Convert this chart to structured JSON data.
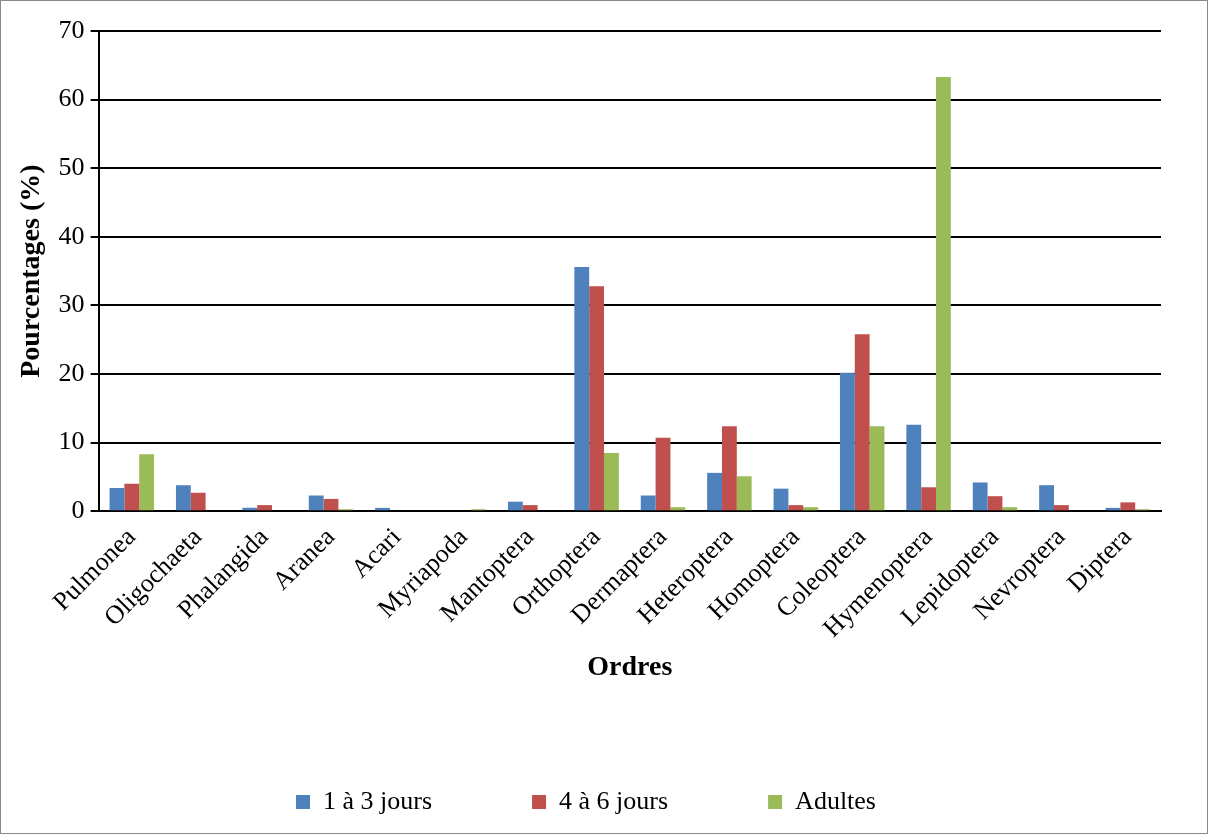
{
  "chart_data": {
    "type": "bar",
    "xlabel": "Ordres",
    "ylabel": "Pourcentages (%)",
    "categories": [
      "Pulmonea",
      "Oligochaeta",
      "Phalangida",
      "Aranea",
      "Acari",
      "Myriapoda",
      "Mantoptera",
      "Orthoptera",
      "Dermaptera",
      "Heteroptera",
      "Homoptera",
      "Coleoptera",
      "Hymenoptera",
      "Lepidoptera",
      "Nevroptera",
      "Diptera"
    ],
    "series": [
      {
        "name": "1 à 3 jours",
        "color": "#4f81bd",
        "values": [
          3.4,
          3.8,
          0.5,
          2.3,
          0.5,
          0,
          1.4,
          35.6,
          2.3,
          5.6,
          3.3,
          20.2,
          12.6,
          4.2,
          3.8,
          0.5
        ]
      },
      {
        "name": "4 à 6 jours",
        "color": "#c0504d",
        "values": [
          4.0,
          2.7,
          0.9,
          1.8,
          0,
          0,
          0.9,
          32.8,
          10.7,
          12.4,
          0.9,
          25.8,
          3.5,
          2.2,
          0.9,
          1.3
        ]
      },
      {
        "name": "Adultes",
        "color": "#9bbb59",
        "values": [
          8.3,
          0,
          0,
          0.3,
          0,
          0.3,
          0,
          8.5,
          0.6,
          5.1,
          0.6,
          12.4,
          63.3,
          0.6,
          0,
          0.3
        ]
      }
    ],
    "ylim": [
      0,
      70
    ],
    "yticks": [
      0,
      10,
      20,
      30,
      40,
      50,
      60,
      70
    ],
    "grid": "y",
    "legend": "bottom"
  }
}
